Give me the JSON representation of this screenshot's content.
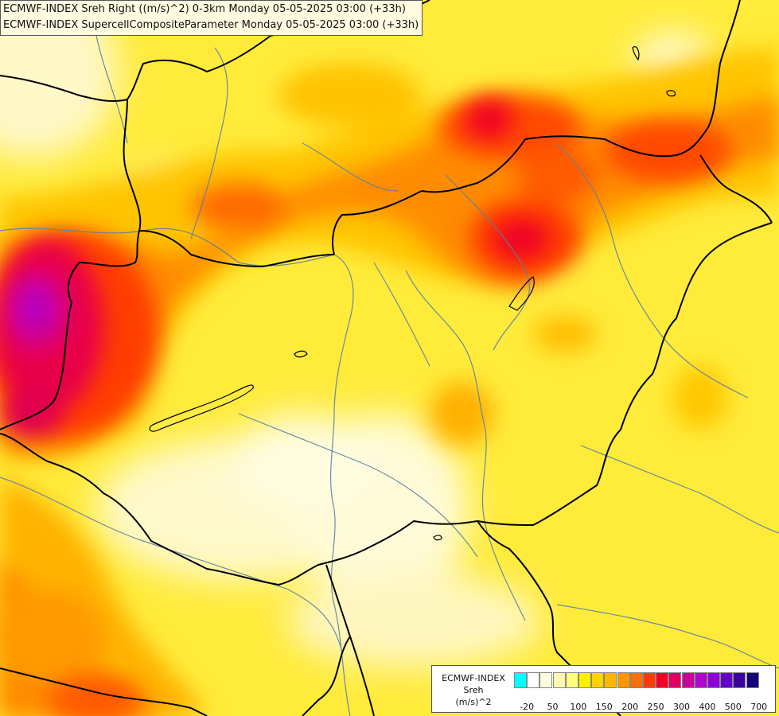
{
  "header": {
    "line1": "ECMWF-INDEX Sreh Right ((m/s)^2) 0-3km Monday 05-05-2025 03:00 (+33h)",
    "line2": "ECMWF-INDEX SupercellCompositeParameter Monday 05-05-2025 03:00 (+33h)"
  },
  "legend": {
    "line1": "ECMWF-INDEX",
    "line2": "Sreh",
    "line3": "(m/s)^2",
    "ticks": [
      "-20",
      "50",
      "100",
      "150",
      "200",
      "250",
      "300",
      "400",
      "500",
      "700"
    ],
    "colors": [
      "#00ffff",
      "#ffffff",
      "#fffde0",
      "#fff8b0",
      "#ffff80",
      "#ffef00",
      "#ffd200",
      "#ffb400",
      "#ff9600",
      "#ff6e00",
      "#ff3c00",
      "#f00028",
      "#dc0064",
      "#c8009b",
      "#b400d2",
      "#8c00dc",
      "#6400c8",
      "#3c00a0",
      "#140078"
    ]
  },
  "colors": {
    "background_field": "#ffeb3a",
    "border_lines": "#000000",
    "river_lines": "#5b7fa6"
  }
}
